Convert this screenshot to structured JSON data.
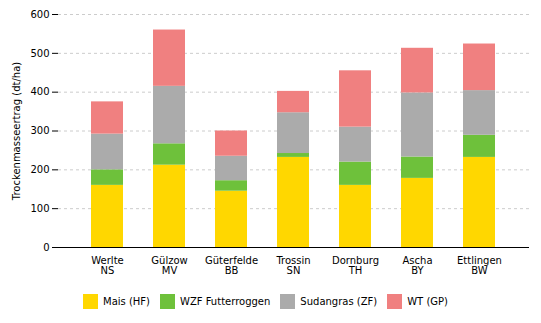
{
  "chart_data": {
    "type": "bar",
    "stacked": true,
    "ylabel": "Trockenmasseertrag (dt/ha)",
    "categories": [
      "Werlte\nNS",
      "Gülzow\nMV",
      "Güterfelde\nBB",
      "Trossin\nSN",
      "Dornburg\nTH",
      "Ascha\nBY",
      "Ettlingen\nBW"
    ],
    "series": [
      {
        "name": "Mais (HF)",
        "color": "#FFD700",
        "values": [
          160,
          212,
          145,
          232,
          160,
          178,
          232
        ]
      },
      {
        "name": "WZF Futterroggen",
        "color": "#6EC13B",
        "values": [
          40,
          55,
          27,
          10,
          60,
          55,
          57
        ]
      },
      {
        "name": "Sudangras (ZF)",
        "color": "#ABABAB",
        "values": [
          92,
          148,
          63,
          105,
          90,
          165,
          115
        ]
      },
      {
        "name": "WT (GP)",
        "color": "#F08080",
        "values": [
          83,
          145,
          65,
          55,
          145,
          115,
          120
        ]
      }
    ],
    "ylim": [
      0,
      600
    ],
    "yticks": [
      0,
      100,
      200,
      300,
      400,
      500,
      600
    ],
    "grid": true,
    "legend": "bottom"
  }
}
